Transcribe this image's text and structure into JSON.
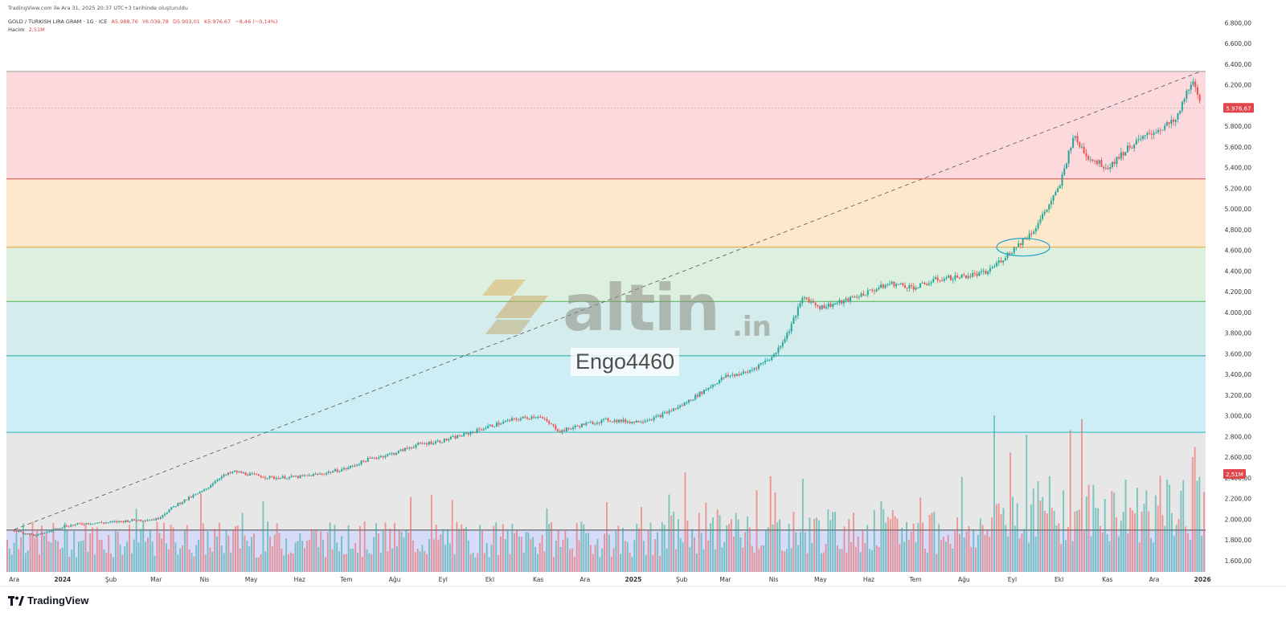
{
  "header": {
    "top_line": "TradingView.com ile Ara 31, 2025 20:37 UTC+3 tarihinde oluşturuldu",
    "symbol": "GOLD / TURKISH LIRA GRAM · 1G · ICE",
    "open": "A5.988,76",
    "high": "Y6.039,78",
    "low": "D5.903,01",
    "close": "K5.976,67",
    "change": "−8,46 (−0,14%)",
    "volume_label": "Hacim",
    "volume_value": "2,51M"
  },
  "watermark": {
    "brand": "altin",
    "brand_suffix": ".in",
    "id": "Engo4460"
  },
  "footer": {
    "brand": "TradingView"
  },
  "colors": {
    "up": "#26a69a",
    "down": "#ef5350",
    "zone_red": "#fbd9dc",
    "zone_orange": "#fde8cb",
    "zone_green": "#ddf0df",
    "zone_teal": "#d5ecec",
    "zone_cyan": "#cdeef5",
    "zone_gray": "#e7e7e7",
    "zone_blue": "#d6dcf7",
    "price_label": "#e0474c"
  },
  "chart_data": {
    "type": "candlestick",
    "y_ticks": [
      "6.800,00",
      "6.600,00",
      "6.400,00",
      "6.200,00",
      "6.000,00",
      "5.800,00",
      "5.600,00",
      "5.400,00",
      "5.200,00",
      "5.000,00",
      "4.800,00",
      "4.600,00",
      "4.400,00",
      "4.200,00",
      "4.000,00",
      "3.800,00",
      "3.600,00",
      "3.400,00",
      "3.200,00",
      "3.000,00",
      "2.800,00",
      "2.600,00",
      "2.400,00",
      "2.200,00",
      "2.000,00",
      "1.800,00",
      "1.600,00"
    ],
    "y_tick_values": [
      6800,
      6600,
      6400,
      6200,
      6000,
      5800,
      5600,
      5400,
      5200,
      5000,
      4800,
      4600,
      4400,
      4200,
      4000,
      3800,
      3600,
      3400,
      3200,
      3000,
      2800,
      2600,
      2400,
      2200,
      2000,
      1800,
      1600
    ],
    "x_labels": [
      "Ara",
      "2024",
      "Şub",
      "Mar",
      "Nis",
      "May",
      "Haz",
      "Tem",
      "Ağu",
      "Eyl",
      "Ekl",
      "Kas",
      "Ara",
      "2025",
      "Şub",
      "Mar",
      "Nis",
      "May",
      "Haz",
      "Tem",
      "Ağu",
      "Eyl",
      "Ekl",
      "Kas",
      "Ara",
      "2026"
    ],
    "ylim": [
      1490,
      6880
    ],
    "price_levels": [
      6330,
      5290,
      4630,
      4105,
      3580,
      2840,
      1895
    ],
    "current_price": 5976.67,
    "current_price_label": "5.976,67",
    "volume_label": "2,51M",
    "trendline": {
      "from": [
        "2023-12-01",
        1900
      ],
      "to": [
        "2025-12-31",
        6330
      ]
    },
    "annotation": "circle near 4.630 level at Eyl 2025",
    "series": [
      {
        "name": "close",
        "x": [
          "2023-12-01",
          "2023-12-15",
          "2024-01-01",
          "2024-01-15",
          "2024-02-01",
          "2024-02-15",
          "2024-03-01",
          "2024-03-15",
          "2024-04-01",
          "2024-04-10",
          "2024-04-20",
          "2024-05-01",
          "2024-05-15",
          "2024-06-01",
          "2024-06-15",
          "2024-07-01",
          "2024-07-15",
          "2024-08-01",
          "2024-08-15",
          "2024-09-01",
          "2024-09-15",
          "2024-10-01",
          "2024-10-15",
          "2024-11-01",
          "2024-11-15",
          "2024-12-01",
          "2024-12-15",
          "2025-01-01",
          "2025-01-15",
          "2025-02-01",
          "2025-02-15",
          "2025-03-01",
          "2025-03-15",
          "2025-04-01",
          "2025-04-10",
          "2025-04-20",
          "2025-05-01",
          "2025-05-15",
          "2025-06-01",
          "2025-06-15",
          "2025-07-01",
          "2025-07-15",
          "2025-08-01",
          "2025-08-15",
          "2025-09-01",
          "2025-09-15",
          "2025-10-01",
          "2025-10-10",
          "2025-10-20",
          "2025-11-01",
          "2025-11-15",
          "2025-12-01",
          "2025-12-15",
          "2025-12-25",
          "2025-12-31"
        ],
        "values": [
          1890,
          1840,
          1930,
          1960,
          1970,
          1990,
          2000,
          2150,
          2280,
          2400,
          2460,
          2430,
          2400,
          2410,
          2440,
          2490,
          2580,
          2640,
          2720,
          2760,
          2820,
          2900,
          2960,
          3000,
          2850,
          2920,
          2960,
          2940,
          2980,
          3100,
          3240,
          3380,
          3420,
          3580,
          3800,
          4150,
          4050,
          4100,
          4200,
          4280,
          4240,
          4320,
          4350,
          4380,
          4600,
          4800,
          5200,
          5700,
          5500,
          5400,
          5600,
          5750,
          5850,
          6250,
          5977
        ]
      }
    ]
  }
}
